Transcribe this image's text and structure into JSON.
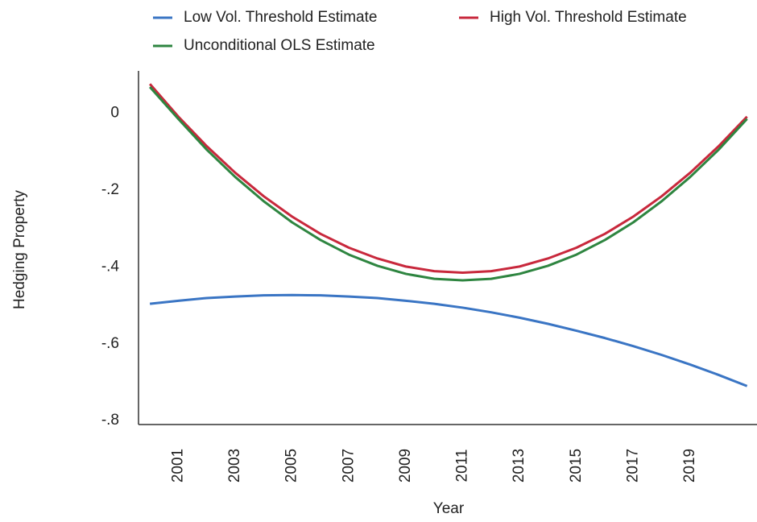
{
  "chart_data": {
    "type": "line",
    "y_label": "Hedging Property",
    "x_label": "Year",
    "x": [
      2000,
      2001,
      2002,
      2003,
      2004,
      2005,
      2006,
      2007,
      2008,
      2009,
      2010,
      2011,
      2012,
      2013,
      2014,
      2015,
      2016,
      2017,
      2018,
      2019,
      2020,
      2021
    ],
    "series": [
      {
        "name": "Low Vol. Threshold Estimate",
        "color": "#3a75c4",
        "values": [
          -0.496,
          -0.488,
          -0.481,
          -0.477,
          -0.474,
          -0.473,
          -0.474,
          -0.477,
          -0.481,
          -0.488,
          -0.496,
          -0.506,
          -0.518,
          -0.532,
          -0.548,
          -0.566,
          -0.585,
          -0.606,
          -0.629,
          -0.654,
          -0.681,
          -0.71
        ]
      },
      {
        "name": "High Vol. Threshold Estimate",
        "color": "#c8283c",
        "values": [
          0.076,
          -0.009,
          -0.086,
          -0.155,
          -0.216,
          -0.269,
          -0.314,
          -0.35,
          -0.378,
          -0.399,
          -0.411,
          -0.415,
          -0.411,
          -0.399,
          -0.378,
          -0.35,
          -0.314,
          -0.269,
          -0.216,
          -0.155,
          -0.086,
          -0.009
        ]
      },
      {
        "name": "Unconditional OLS Estimate",
        "color": "#2e8540",
        "values": [
          0.068,
          -0.015,
          -0.095,
          -0.166,
          -0.229,
          -0.284,
          -0.33,
          -0.368,
          -0.397,
          -0.418,
          -0.431,
          -0.435,
          -0.431,
          -0.418,
          -0.397,
          -0.368,
          -0.33,
          -0.284,
          -0.229,
          -0.166,
          -0.095,
          -0.015
        ]
      }
    ],
    "xlim": [
      1999.6,
      2021.35
    ],
    "xticks": [
      2001,
      2003,
      2005,
      2007,
      2009,
      2011,
      2013,
      2015,
      2017,
      2019
    ],
    "ylim": [
      -0.81,
      0.11
    ],
    "yticks": [
      {
        "value": 0,
        "label": "0"
      },
      {
        "value": -0.2,
        "label": "-.2"
      },
      {
        "value": -0.4,
        "label": "-.4"
      },
      {
        "value": -0.6,
        "label": "-.6"
      },
      {
        "value": -0.8,
        "label": "-.8"
      }
    ],
    "grid": false
  }
}
